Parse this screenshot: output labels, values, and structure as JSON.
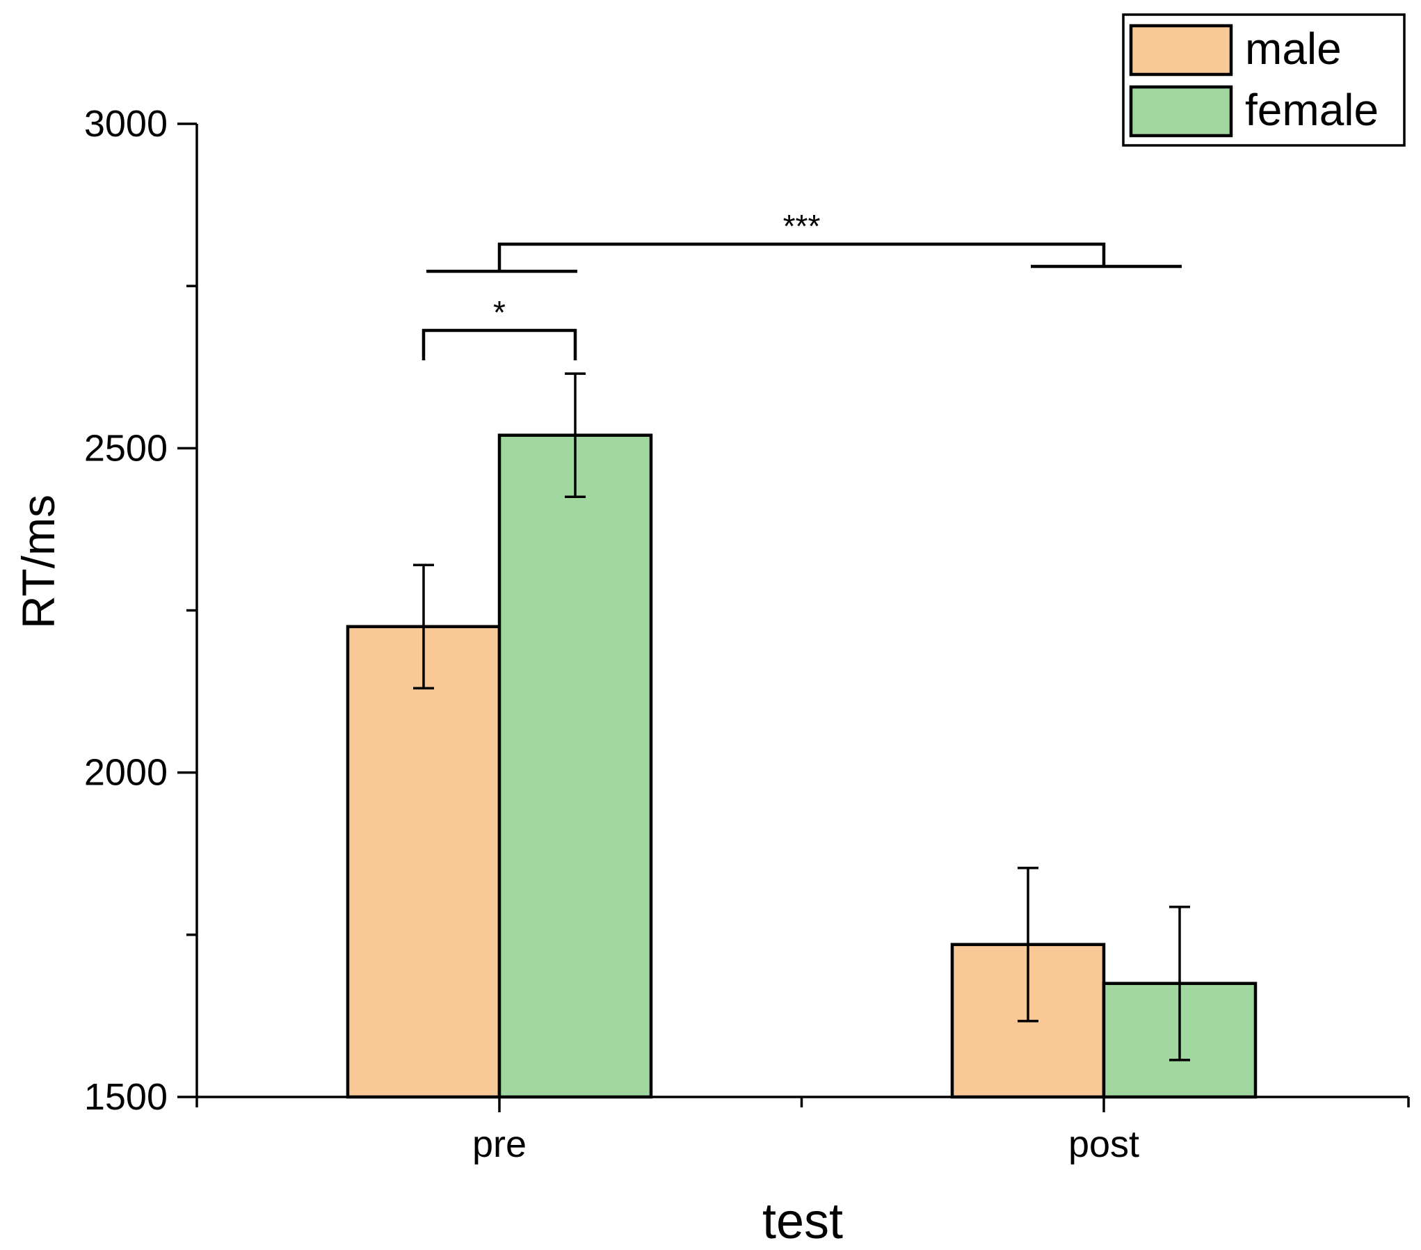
{
  "chart_data": {
    "type": "bar",
    "categories": [
      "pre",
      "post"
    ],
    "series": [
      {
        "name": "male",
        "values": [
          2225,
          1735
        ],
        "errors": [
          95,
          118
        ],
        "color": "#F9C897"
      },
      {
        "name": "female",
        "values": [
          2520,
          1675
        ],
        "errors": [
          95,
          118
        ],
        "color": "#9FD79E"
      }
    ],
    "title": "",
    "xlabel": "test",
    "ylabel": "RT/ms",
    "ylim": [
      1500,
      3000
    ],
    "yticks": [
      1500,
      2000,
      2500,
      3000
    ],
    "legend_position": "top-right",
    "grid": false,
    "significance": [
      {
        "label": "*",
        "category": "pre",
        "type": "within-group"
      },
      {
        "label": "***",
        "type": "between-groups",
        "categories": [
          "pre",
          "post"
        ]
      }
    ]
  }
}
